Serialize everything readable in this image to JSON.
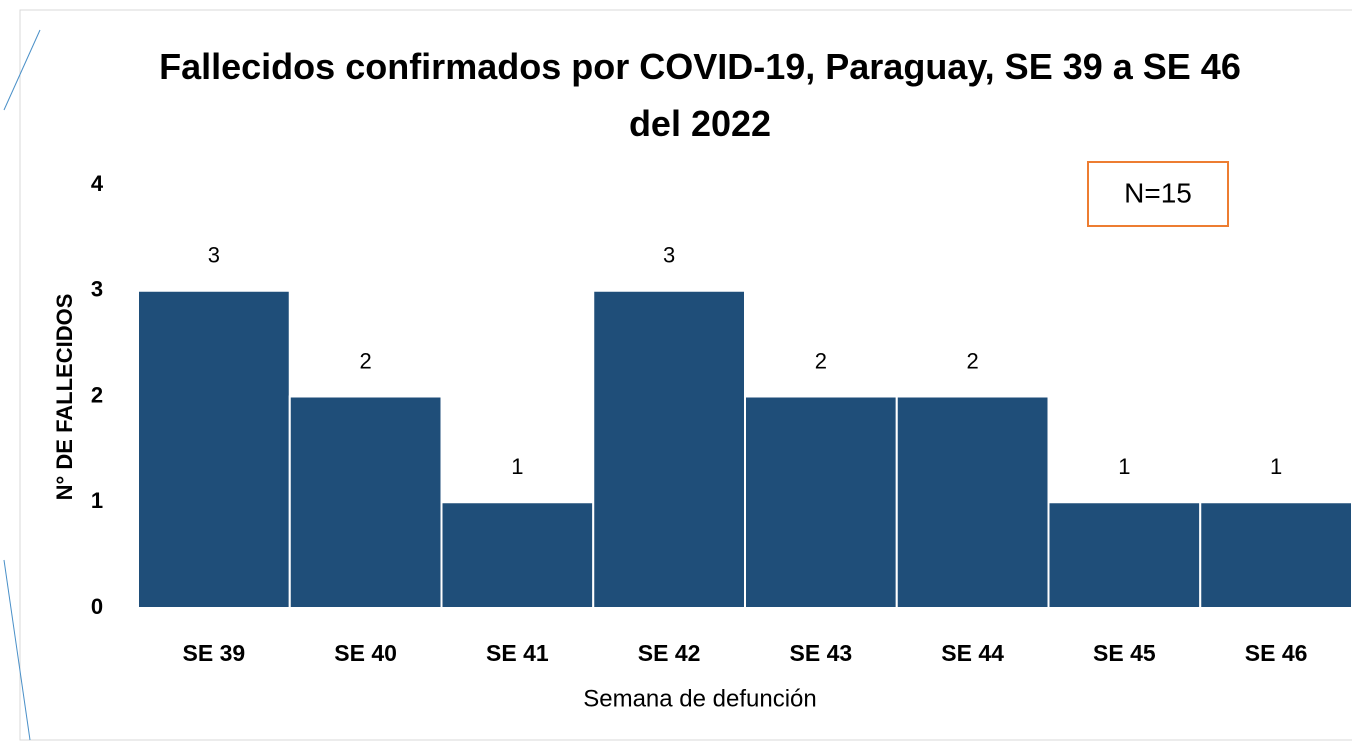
{
  "chart_data": {
    "type": "bar",
    "title": "Fallecidos confirmados por COVID-19, Paraguay, SE 39 a SE 46 del 2022",
    "annotation": "N=15",
    "x_label": "Semana de defunción",
    "y_label": "N° DE FALLECIDOS",
    "categories": [
      "SE 39",
      "SE 40",
      "SE 41",
      "SE 42",
      "SE 43",
      "SE 44",
      "SE 45",
      "SE 46"
    ],
    "values": [
      3,
      2,
      1,
      3,
      2,
      2,
      1,
      1
    ],
    "color": "#1f4e79",
    "ylim": [
      0,
      4
    ],
    "yticks": [
      0,
      1,
      2,
      3,
      4
    ],
    "grid": false
  }
}
